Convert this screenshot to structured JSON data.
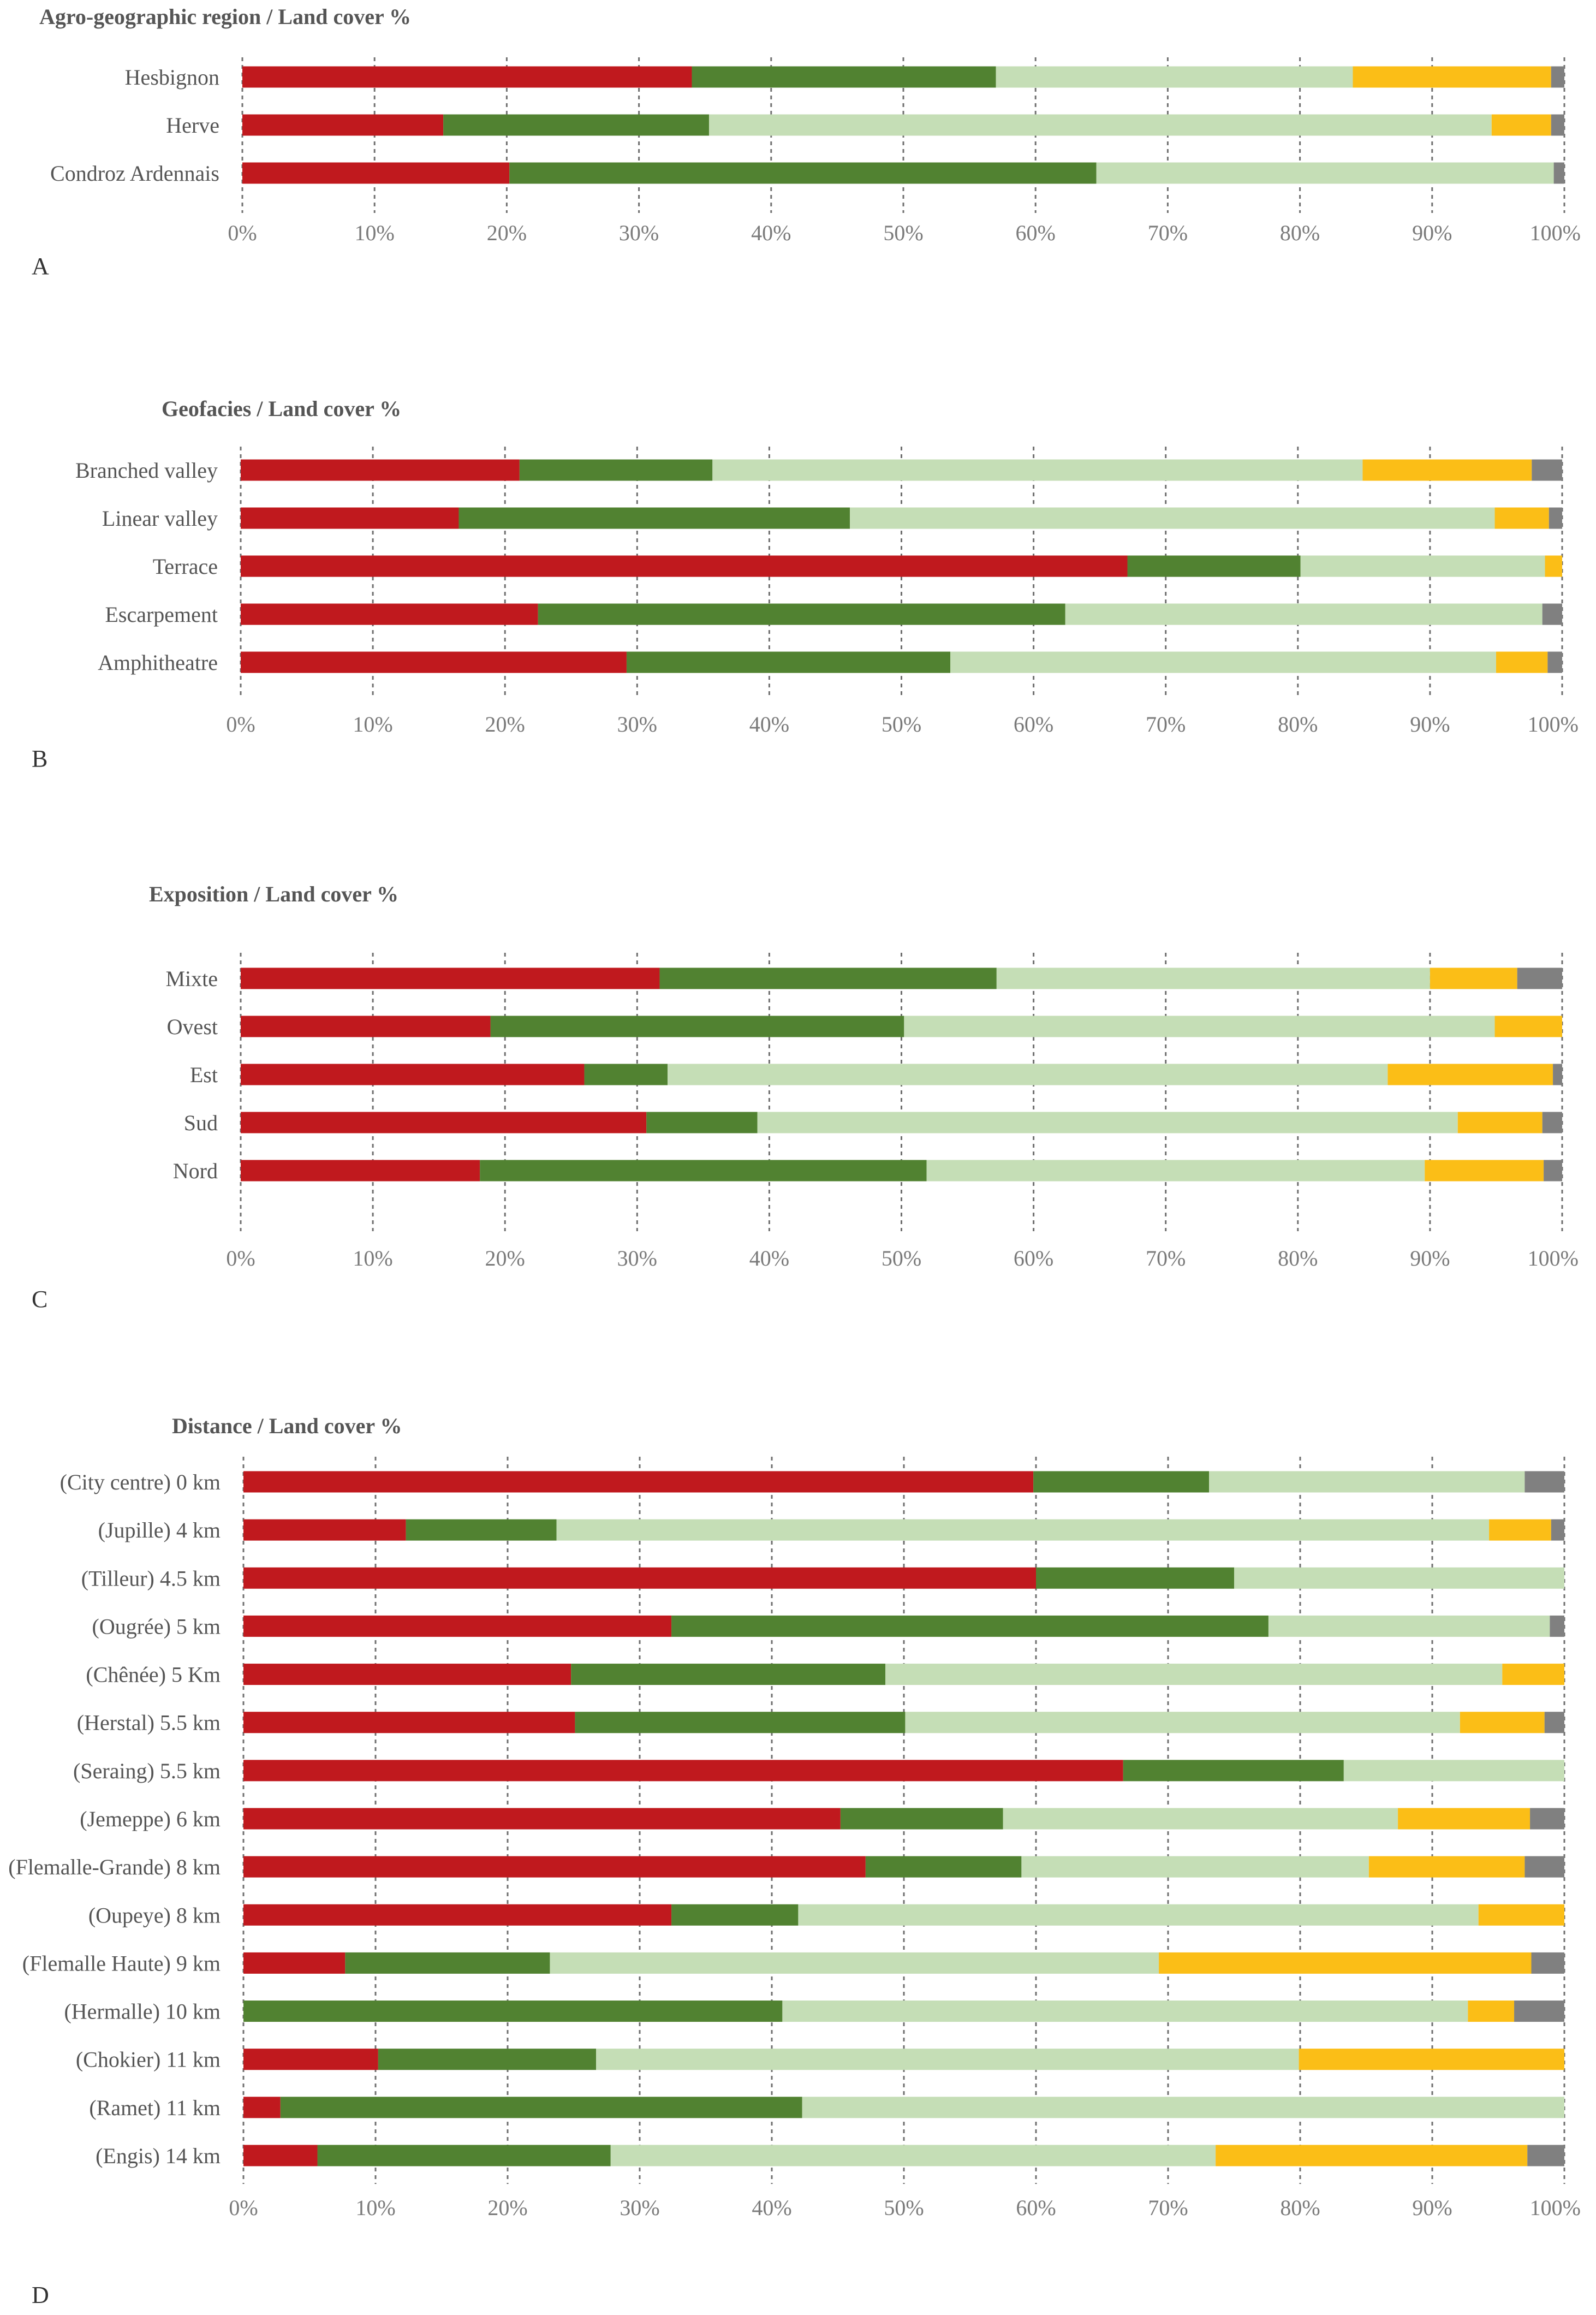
{
  "colors": {
    "segments": [
      "#c0191e",
      "#518231",
      "#c5deb6",
      "#fbbe17",
      "#808080"
    ]
  },
  "chart_data": [
    {
      "panel": "A",
      "type": "bar",
      "orientation": "horizontal",
      "stacked": true,
      "title": "Agro-geographic region / Land cover %",
      "categories": [
        "Hesbignon",
        "Herve",
        "Condroz Ardennais"
      ],
      "segments": [
        [
          34,
          23,
          27,
          15,
          1
        ],
        [
          15.2,
          20.1,
          59.2,
          4.5,
          1
        ],
        [
          20.2,
          44.4,
          34.6,
          0,
          0.8
        ]
      ],
      "xlim": [
        0,
        100
      ],
      "ticks": [
        "0%",
        "10%",
        "20%",
        "30%",
        "40%",
        "50%",
        "60%",
        "70%",
        "80%",
        "90%",
        "100%"
      ],
      "grid": true
    },
    {
      "panel": "B",
      "type": "bar",
      "orientation": "horizontal",
      "stacked": true,
      "title": "Geofacies / Land cover %",
      "categories": [
        "Branched valley",
        "Linear valley",
        "Terrace",
        "Escarpement",
        "Amphitheatre"
      ],
      "segments": [
        [
          21.1,
          14.6,
          49.2,
          12.8,
          2.3
        ],
        [
          16.5,
          29.6,
          48.8,
          4.1,
          1
        ],
        [
          67.1,
          13.1,
          18.5,
          1.3,
          0
        ],
        [
          22.5,
          39.9,
          36.1,
          0,
          1.5
        ],
        [
          29.2,
          24.5,
          41.3,
          3.9,
          1.1
        ]
      ],
      "xlim": [
        0,
        100
      ],
      "ticks": [
        "0%",
        "10%",
        "20%",
        "30%",
        "40%",
        "50%",
        "60%",
        "70%",
        "80%",
        "90%",
        "100%"
      ],
      "grid": true
    },
    {
      "panel": "C",
      "type": "bar",
      "orientation": "horizontal",
      "stacked": true,
      "title": "Exposition / Land cover %",
      "categories": [
        "Mixte",
        "Ovest",
        "Est",
        "Sud",
        "Nord"
      ],
      "segments": [
        [
          31.7,
          25.5,
          32.8,
          6.6,
          3.4
        ],
        [
          18.9,
          31.3,
          44.7,
          5.1,
          0
        ],
        [
          26,
          6.3,
          54.5,
          12.5,
          0.7
        ],
        [
          30.7,
          8.4,
          53,
          6.4,
          1.5
        ],
        [
          18.1,
          33.8,
          37.7,
          9,
          1.4
        ]
      ],
      "xlim": [
        0,
        100
      ],
      "ticks": [
        "0%",
        "10%",
        "20%",
        "30%",
        "40%",
        "50%",
        "60%",
        "70%",
        "80%",
        "90%",
        "100%"
      ],
      "grid": true
    },
    {
      "panel": "D",
      "type": "bar",
      "orientation": "horizontal",
      "stacked": true,
      "title": "Distance / Land cover %",
      "categories": [
        "(City centre) 0 km",
        "(Jupille) 4 km",
        "(Tilleur) 4.5 km",
        "(Ougrée) 5 km",
        "(Chênée) 5 Km",
        "(Herstal) 5.5 km",
        "(Seraing) 5.5 km",
        "(Jemeppe) 6 km",
        "(Flemalle-Grande) 8 km",
        "(Oupeye) 8 km",
        "(Flemalle Haute) 9 km",
        "(Hermalle) 10 km",
        "(Chokier) 11 km",
        "(Ramet) 11 km",
        "(Engis) 14 km"
      ],
      "segments": [
        [
          59.8,
          13.3,
          23.9,
          0,
          3
        ],
        [
          12.3,
          11.4,
          70.6,
          4.7,
          1
        ],
        [
          60,
          15,
          25,
          0,
          0
        ],
        [
          32.4,
          45.2,
          21.3,
          0,
          1.1
        ],
        [
          24.8,
          23.8,
          46.7,
          4.7,
          0
        ],
        [
          25.1,
          25,
          42,
          6.4,
          1.5
        ],
        [
          66.6,
          16.7,
          16.7,
          0,
          0
        ],
        [
          45.2,
          12.3,
          29.9,
          10,
          2.6
        ],
        [
          47.1,
          11.8,
          26.3,
          11.8,
          3
        ],
        [
          32.4,
          9.6,
          51.5,
          6.5,
          0
        ],
        [
          7.7,
          15.5,
          46.1,
          28.2,
          2.5
        ],
        [
          0,
          40.8,
          51.9,
          3.5,
          3.8
        ],
        [
          10.2,
          16.5,
          53.2,
          20.1,
          0
        ],
        [
          2.8,
          39.5,
          57.7,
          0,
          0
        ],
        [
          5.6,
          22.2,
          45.8,
          23.6,
          2.8
        ]
      ],
      "xlim": [
        0,
        100
      ],
      "ticks": [
        "0%",
        "10%",
        "20%",
        "30%",
        "40%",
        "50%",
        "60%",
        "70%",
        "80%",
        "90%",
        "100%"
      ],
      "grid": true
    }
  ]
}
